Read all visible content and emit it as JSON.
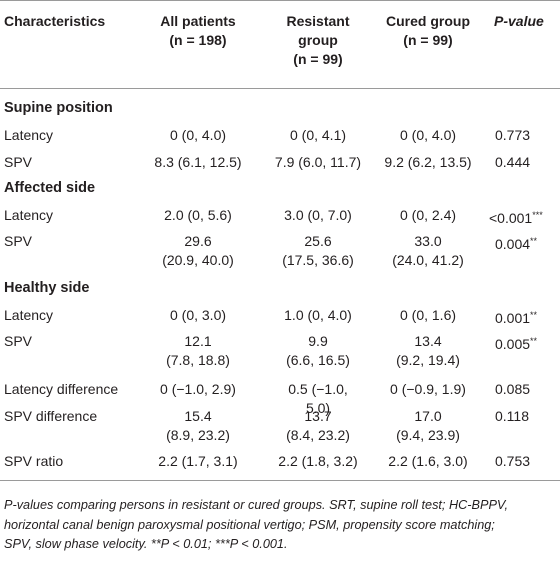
{
  "header": {
    "characteristics": "Characteristics",
    "all": [
      "All patients",
      "(n = 198)"
    ],
    "resistant": [
      "Resistant",
      "group",
      "(n = 99)"
    ],
    "cured": [
      "Cured group",
      "(n = 99)"
    ],
    "pvalue": "P-value"
  },
  "sections": {
    "supine": "Supine position",
    "affected": "Affected side",
    "healthy": "Healthy side"
  },
  "rows": {
    "supine_latency": {
      "label": "Latency",
      "all": "0 (0, 4.0)",
      "resistant": "0 (0, 4.1)",
      "cured": "0 (0, 4.0)",
      "p": "0.773",
      "stars": ""
    },
    "supine_spv": {
      "label": "SPV",
      "all": "8.3 (6.1, 12.5)",
      "resistant": "7.9 (6.0, 11.7)",
      "cured": "9.2 (6.2, 13.5)",
      "p": "0.444",
      "stars": ""
    },
    "affected_latency": {
      "label": "Latency",
      "all": "2.0 (0, 5.6)",
      "resistant": "3.0 (0, 7.0)",
      "cured": "0 (0, 2.4)",
      "p": "<0.001",
      "stars": "***"
    },
    "affected_spv": {
      "label": "SPV",
      "all": [
        "29.6",
        "(20.9, 40.0)"
      ],
      "resistant": [
        "25.6",
        "(17.5, 36.6)"
      ],
      "cured": [
        "33.0",
        "(24.0, 41.2)"
      ],
      "p": "0.004",
      "stars": "**"
    },
    "healthy_latency": {
      "label": "Latency",
      "all": "0 (0, 3.0)",
      "resistant": "1.0 (0, 4.0)",
      "cured": "0 (0, 1.6)",
      "p": "0.001",
      "stars": "**"
    },
    "healthy_spv": {
      "label": "SPV",
      "all": [
        "12.1",
        "(7.8, 18.8)"
      ],
      "resistant": [
        "9.9",
        "(6.6, 16.5)"
      ],
      "cured": [
        "13.4",
        "(9.2, 19.4)"
      ],
      "p": "0.005",
      "stars": "**"
    },
    "latency_diff": {
      "label": "Latency difference",
      "all": "0 (−1.0, 2.9)",
      "resistant": [
        "0.5 (−1.0,",
        "5.0)"
      ],
      "cured": "0 (−0.9, 1.9)",
      "p": "0.085",
      "stars": ""
    },
    "spv_diff": {
      "label": "SPV difference",
      "all": [
        "15.4",
        "(8.9, 23.2)"
      ],
      "resistant": [
        "13.7",
        "(8.4, 23.2)"
      ],
      "cured": [
        "17.0",
        "(9.4, 23.9)"
      ],
      "p": "0.118",
      "stars": ""
    },
    "spv_ratio": {
      "label": "SPV ratio",
      "all": "2.2 (1.7, 3.1)",
      "resistant": "2.2 (1.8, 3.2)",
      "cured": "2.2 (1.6, 3.0)",
      "p": "0.753",
      "stars": ""
    }
  },
  "footnote": {
    "lines": [
      "P-values comparing persons in resistant or cured groups. SRT, supine roll test; HC-BPPV,",
      "horizontal canal benign paroxysmal positional vertigo; PSM, propensity score matching;",
      "SPV, slow phase velocity. **P < 0.01; ***P < 0.001."
    ]
  }
}
